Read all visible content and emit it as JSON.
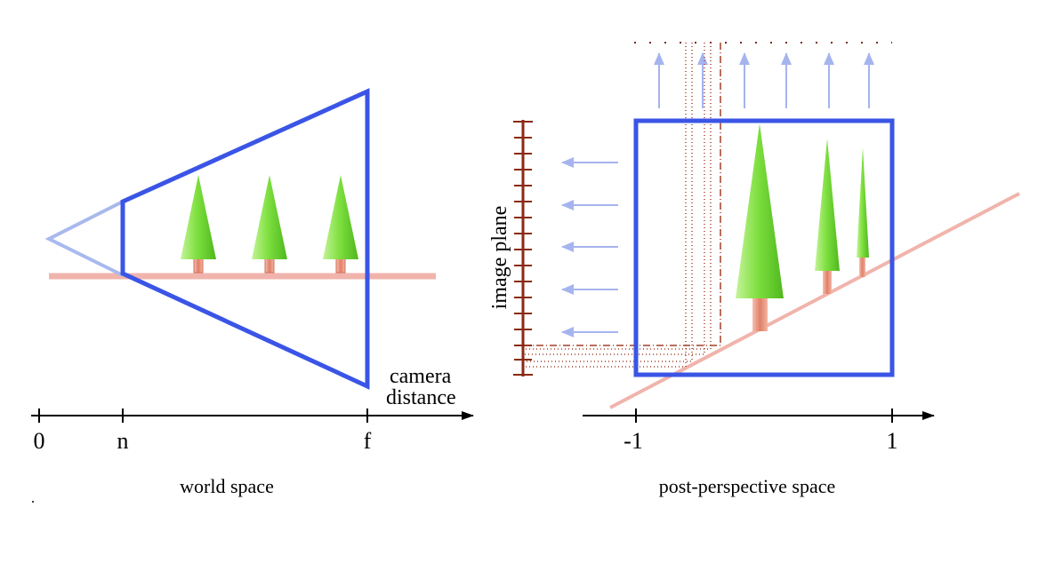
{
  "left_panel": {
    "caption": "world space",
    "axis_label_line1": "camera",
    "axis_label_line2": "distance",
    "ticks": [
      "0",
      "n",
      "f"
    ]
  },
  "right_panel": {
    "caption": "post-perspective space",
    "image_plane_label": "image plane",
    "ticks": [
      "-1",
      "1"
    ]
  },
  "colors": {
    "frustum": "#3a55e6",
    "frustum_faint": "#a9b9ee",
    "ground": "#f0b4ac",
    "tree_foliage": "#7fe040",
    "tree_trunk": "#e88a74",
    "arrow": "#a6b4ee",
    "image_plane": "#8a2a14",
    "projection_lines": "#a0402a"
  }
}
